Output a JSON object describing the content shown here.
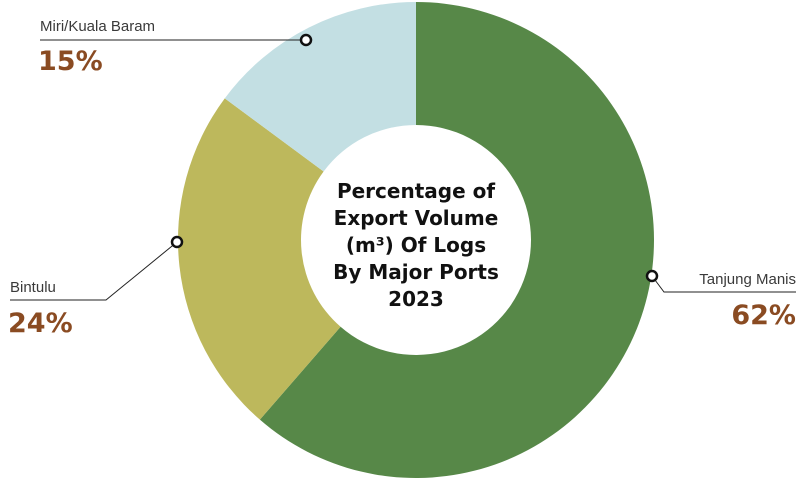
{
  "chart_data": {
    "type": "pie",
    "donut": true,
    "title_lines": [
      "Percentage of",
      "Export Volume",
      "(m³) Of Logs",
      "By Major Ports",
      "2023"
    ],
    "slices": [
      {
        "label": "Tanjung Manis",
        "value": 62,
        "display": "62%",
        "color": "#578848"
      },
      {
        "label": "Bintulu",
        "value": 24,
        "display": "24%",
        "color": "#bdb85c"
      },
      {
        "label": "Miri/Kuala Baram",
        "value": 15,
        "display": "15%",
        "color": "#c3dfe3"
      }
    ],
    "label_color": "#8a4b22"
  }
}
